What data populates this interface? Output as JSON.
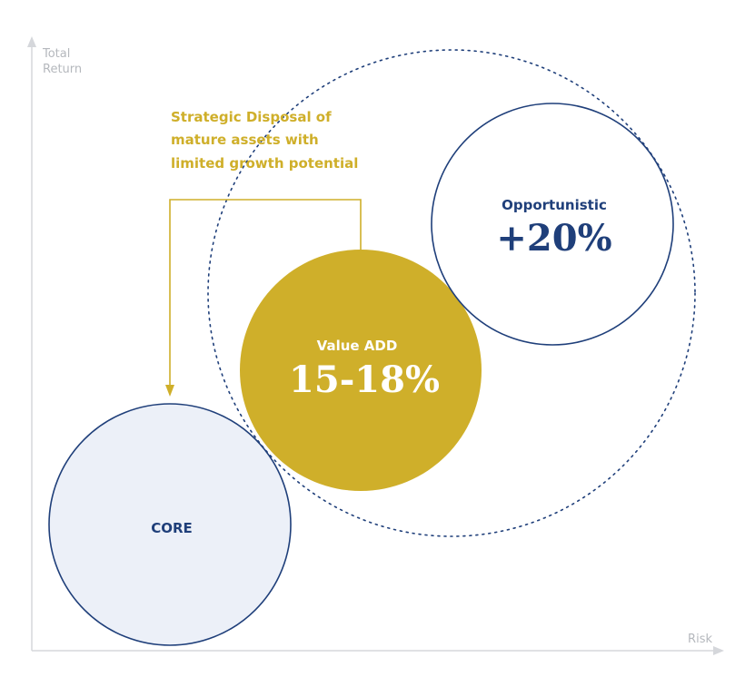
{
  "axes": {
    "y_label_line1": "Total",
    "y_label_line2": "Return",
    "x_label": "Risk"
  },
  "callout": {
    "line1": "Strategic Disposal of",
    "line2": "mature assets with",
    "line3": "limited growth potential"
  },
  "circles": {
    "core": {
      "label": "CORE"
    },
    "value_add": {
      "label": "Value ADD",
      "value": "15-18%"
    },
    "opportunistic": {
      "label": "Opportunistic",
      "value": "+20%"
    }
  },
  "colors": {
    "navy": "#1f3f7a",
    "gold": "#cfaf2a",
    "core_fill": "#ecf0f8",
    "axis": "#d5d7db",
    "axis_text": "#b5b8bd"
  }
}
